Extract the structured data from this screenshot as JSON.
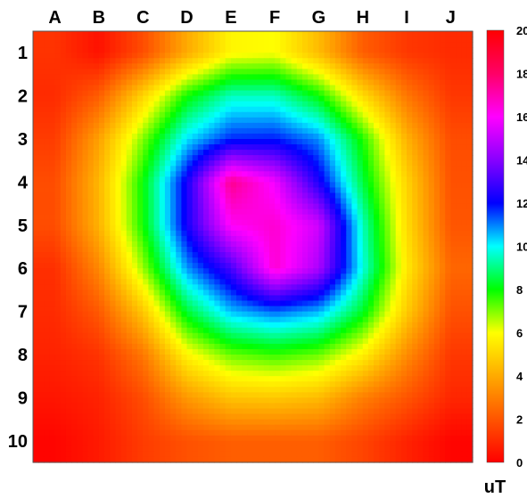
{
  "chart_data": {
    "type": "heatmap",
    "title": "",
    "xlabel": "",
    "ylabel": "",
    "x_categories": [
      "A",
      "B",
      "C",
      "D",
      "E",
      "F",
      "G",
      "H",
      "I",
      "J"
    ],
    "y_categories": [
      "1",
      "2",
      "3",
      "4",
      "5",
      "6",
      "7",
      "8",
      "9",
      "10"
    ],
    "colorbar": {
      "unit": "uT",
      "range": [
        0,
        20
      ],
      "ticks": [
        "0",
        "2",
        "4",
        "6",
        "8",
        "10",
        "12",
        "14",
        "16",
        "18",
        "20"
      ],
      "colors": [
        "#ff0000",
        "#ff5500",
        "#ffaa00",
        "#ffff00",
        "#00ff00",
        "#00ffff",
        "#0000ff",
        "#8800ff",
        "#ff00ff",
        "#ff0066",
        "#ff0000"
      ]
    },
    "values": [
      [
        1.2,
        0.4,
        1.8,
        4.0,
        5.8,
        6.0,
        4.4,
        2.2,
        1.3,
        1.0
      ],
      [
        1.0,
        2.2,
        5.0,
        7.9,
        9.5,
        9.5,
        8.0,
        5.2,
        2.8,
        1.3
      ],
      [
        1.4,
        3.8,
        7.0,
        10.2,
        11.7,
        11.8,
        10.9,
        7.8,
        4.2,
        1.8
      ],
      [
        1.8,
        4.3,
        8.0,
        12.3,
        17.5,
        15.8,
        12.4,
        8.5,
        5.0,
        1.9
      ],
      [
        1.8,
        4.2,
        7.9,
        12.3,
        16.1,
        16.6,
        15.2,
        9.5,
        5.2,
        2.0
      ],
      [
        1.1,
        3.2,
        6.8,
        10.8,
        13.0,
        16.6,
        14.6,
        9.8,
        5.5,
        2.4
      ],
      [
        1.0,
        2.1,
        4.7,
        8.4,
        10.5,
        11.2,
        10.6,
        8.3,
        4.8,
        1.9
      ],
      [
        0.8,
        1.2,
        2.8,
        5.8,
        7.2,
        7.6,
        7.2,
        5.7,
        3.3,
        1.3
      ],
      [
        0.5,
        0.8,
        1.8,
        3.6,
        4.6,
        4.7,
        4.4,
        3.0,
        2.0,
        0.9
      ],
      [
        0.1,
        0.6,
        1.4,
        1.9,
        2.2,
        2.2,
        2.2,
        1.6,
        0.8,
        0.1
      ]
    ]
  }
}
